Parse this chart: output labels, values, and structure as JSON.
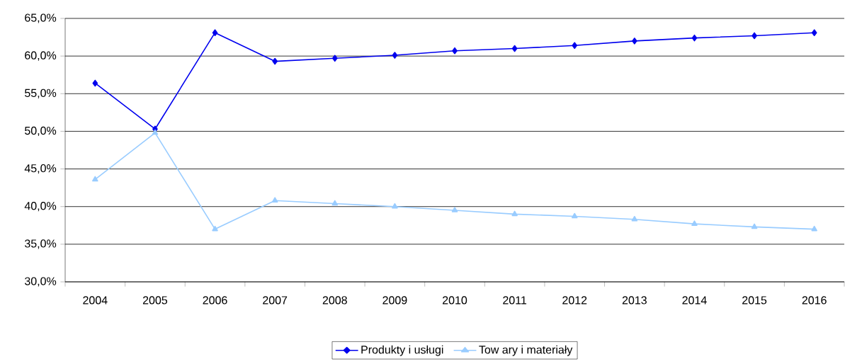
{
  "chart_data": {
    "type": "line",
    "categories": [
      "2004",
      "2005",
      "2006",
      "2007",
      "2008",
      "2009",
      "2010",
      "2011",
      "2012",
      "2013",
      "2014",
      "2015",
      "2016"
    ],
    "series": [
      {
        "name": "Produkty i usługi",
        "color": "#0000ee",
        "marker": "diamond",
        "values": [
          56.4,
          50.3,
          63.1,
          59.3,
          59.7,
          60.1,
          60.7,
          61.0,
          61.4,
          62.0,
          62.4,
          62.7,
          63.1
        ]
      },
      {
        "name": "Tow ary i materiały",
        "color": "#99ccff",
        "marker": "triangle",
        "values": [
          43.6,
          49.8,
          37.0,
          40.8,
          40.4,
          40.0,
          39.5,
          39.0,
          38.7,
          38.3,
          37.7,
          37.3,
          37.0
        ]
      }
    ],
    "ylim": [
      30,
      65
    ],
    "yticks": [
      {
        "value": 30,
        "label": "30,0%"
      },
      {
        "value": 35,
        "label": "35,0%"
      },
      {
        "value": 40,
        "label": "40,0%"
      },
      {
        "value": 45,
        "label": "45,0%"
      },
      {
        "value": 50,
        "label": "50,0%"
      },
      {
        "value": 55,
        "label": "55,0%"
      },
      {
        "value": 60,
        "label": "60,0%"
      },
      {
        "value": 65,
        "label": "65,0%"
      }
    ],
    "grid": "y",
    "legend": "bottom",
    "line_style": "solid"
  }
}
